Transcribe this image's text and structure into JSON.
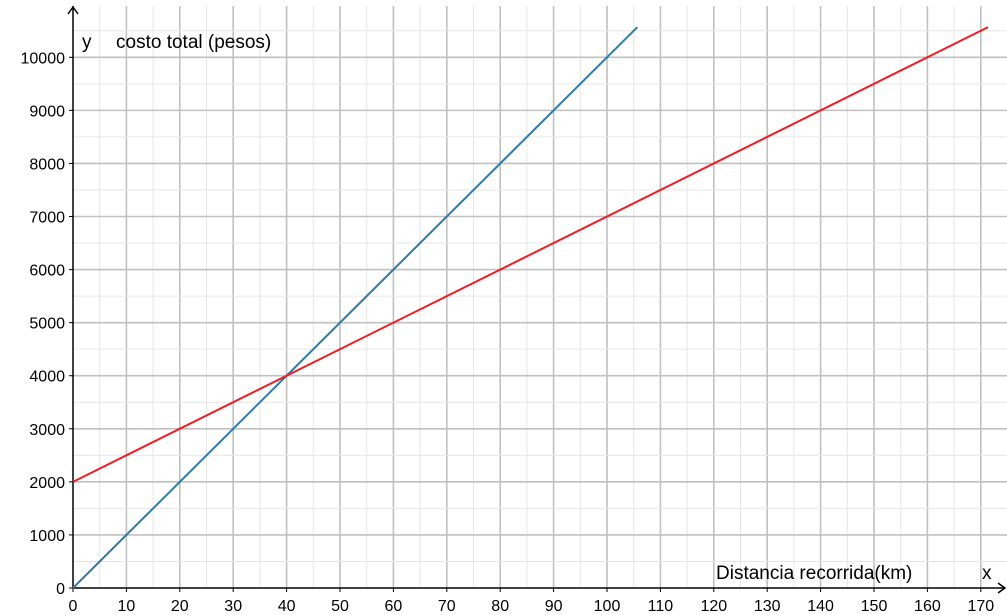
{
  "chart_data": {
    "type": "line",
    "title": "",
    "xlabel": "Distancia recorrida(km)",
    "ylabel": "costo total (pesos)",
    "x_axis_letter": "x",
    "y_axis_letter": "y",
    "xlim": [
      0,
      175
    ],
    "ylim": [
      0,
      10600
    ],
    "x_ticks": [
      0,
      10,
      20,
      30,
      40,
      50,
      60,
      70,
      80,
      90,
      100,
      110,
      120,
      130,
      140,
      150,
      160,
      170
    ],
    "y_ticks": [
      0,
      1000,
      2000,
      3000,
      4000,
      5000,
      6000,
      7000,
      8000,
      9000,
      10000
    ],
    "grid": true,
    "series": [
      {
        "color": "#2e7aa8",
        "x": [
          0,
          10,
          20,
          30,
          40,
          50,
          60,
          70,
          80,
          90,
          100
        ],
        "y": [
          0,
          1000,
          2000,
          3000,
          4000,
          5000,
          6000,
          7000,
          8000,
          9000,
          10000
        ]
      },
      {
        "color": "#ee1c24",
        "x": [
          0,
          20,
          40,
          60,
          80,
          100,
          120,
          140,
          160
        ],
        "y": [
          2000,
          3000,
          4000,
          5000,
          6000,
          7000,
          8000,
          9000,
          10000
        ]
      }
    ]
  }
}
